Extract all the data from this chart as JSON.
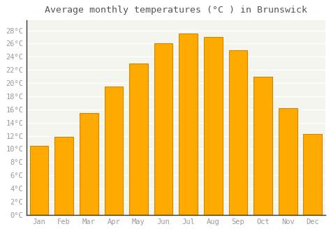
{
  "title": "Average monthly temperatures (°C ) in Brunswick",
  "months": [
    "Jan",
    "Feb",
    "Mar",
    "Apr",
    "May",
    "Jun",
    "Jul",
    "Aug",
    "Sep",
    "Oct",
    "Nov",
    "Dec"
  ],
  "values": [
    10.5,
    11.8,
    15.5,
    19.5,
    23.0,
    26.0,
    27.5,
    27.0,
    25.0,
    21.0,
    16.2,
    12.3
  ],
  "bar_color": "#FFAA00",
  "bar_edge_color": "#CC8800",
  "background_color": "#ffffff",
  "plot_bg_color": "#f5f5f0",
  "grid_color": "#ffffff",
  "ytick_labels": [
    "0°C",
    "2°C",
    "4°C",
    "6°C",
    "8°C",
    "10°C",
    "12°C",
    "14°C",
    "16°C",
    "18°C",
    "20°C",
    "22°C",
    "24°C",
    "26°C",
    "28°C"
  ],
  "ytick_values": [
    0,
    2,
    4,
    6,
    8,
    10,
    12,
    14,
    16,
    18,
    20,
    22,
    24,
    26,
    28
  ],
  "ylim": [
    0,
    29.5
  ],
  "title_fontsize": 9.5,
  "tick_fontsize": 7.5,
  "title_color": "#555555",
  "tick_color": "#999999",
  "spine_color": "#333333"
}
